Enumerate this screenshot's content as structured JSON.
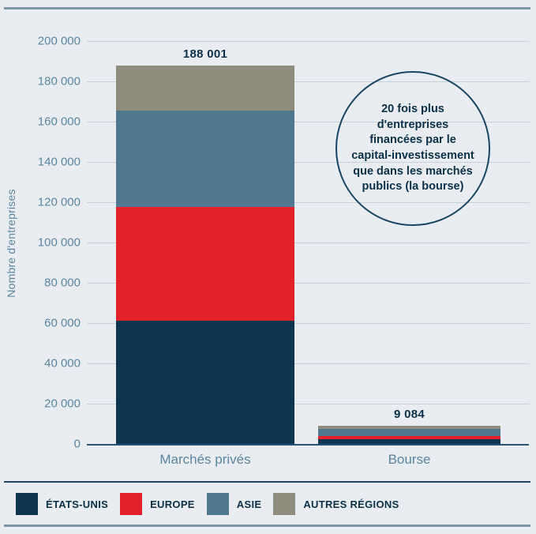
{
  "page": {
    "background": "#e9edf2"
  },
  "chart_data": {
    "type": "bar",
    "stacked": true,
    "title": "",
    "ylabel": "Nombre d'entreprises",
    "xlabel": "",
    "categories": [
      "Marchés privés",
      "Bourse"
    ],
    "totals": [
      "188 001",
      "9 084"
    ],
    "total_values": [
      188001,
      9084
    ],
    "series": [
      {
        "name": "ÉTATS-UNIS",
        "color": "#0e344f",
        "values": [
          61000,
          2300
        ]
      },
      {
        "name": "EUROPE",
        "color": "#e2212b",
        "values": [
          56500,
          1500
        ]
      },
      {
        "name": "ASIE",
        "color": "#50798f",
        "values": [
          48000,
          3700
        ]
      },
      {
        "name": "AUTRES RÉGIONS",
        "color": "#8f8e7e",
        "values": [
          22501,
          1584
        ]
      }
    ],
    "ylim": [
      0,
      200000
    ],
    "y_ticks": [
      "200 000",
      "180 000",
      "160 000",
      "140 000",
      "120 000",
      "100 000",
      "80 000",
      "60 000",
      "40 000",
      "20 000",
      "0"
    ],
    "y_tick_values": [
      200000,
      180000,
      160000,
      140000,
      120000,
      100000,
      80000,
      60000,
      40000,
      20000,
      0
    ],
    "grid": true,
    "legend_position": "bottom"
  },
  "annotation": {
    "text": "20 fois plus\nd'entreprises\nfinancées par le\ncapital-investissement\nque dans les marchés\npublics (la bourse)"
  },
  "colors": {
    "background": "#e9edf2",
    "gridline": "#c5d1db",
    "zero_line": "#2b5270",
    "axis_text": "#5c85a1",
    "dark_text": "#0b3048",
    "rule_slate": "#7e93a3",
    "rule_navy": "#1d4668",
    "annotation_border": "#1a4561"
  }
}
